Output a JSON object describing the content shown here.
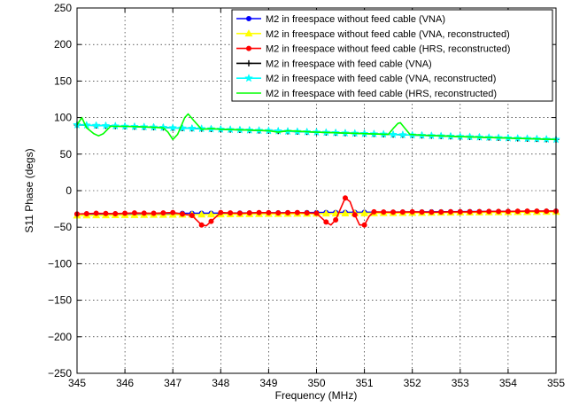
{
  "chart_data": {
    "type": "line",
    "title": "",
    "xlabel": "Frequency (MHz)",
    "ylabel": "S11 Phase (degs)",
    "xlim": [
      345,
      355
    ],
    "ylim": [
      -250,
      250
    ],
    "xticks": [
      345,
      346,
      347,
      348,
      349,
      350,
      351,
      352,
      353,
      354,
      355
    ],
    "yticks": [
      -250,
      -200,
      -150,
      -100,
      -50,
      0,
      50,
      100,
      150,
      200,
      250
    ],
    "grid": true,
    "legend_position": "top-right",
    "series": [
      {
        "name": "M2 in freespace without feed cable (VNA)",
        "color": "#0000ff",
        "marker": "circle",
        "points": [
          [
            345,
            -32
          ],
          [
            346,
            -31.6
          ],
          [
            347,
            -31.2
          ],
          [
            348,
            -30.8
          ],
          [
            349,
            -30.4
          ],
          [
            350,
            -30
          ],
          [
            351,
            -29.6
          ],
          [
            352,
            -29.2
          ],
          [
            353,
            -28.8
          ],
          [
            354,
            -28.4
          ],
          [
            355,
            -28
          ]
        ]
      },
      {
        "name": "M2 in freespace without feed cable (VNA, reconstructed)",
        "color": "#ffff00",
        "marker": "triangle",
        "points": [
          [
            345,
            -34
          ],
          [
            346,
            -33.5
          ],
          [
            347,
            -33
          ],
          [
            348,
            -32.5
          ],
          [
            349,
            -32
          ],
          [
            350,
            -31.5
          ],
          [
            351,
            -31
          ],
          [
            352,
            -30.5
          ],
          [
            353,
            -30
          ],
          [
            354,
            -29.5
          ],
          [
            355,
            -29
          ]
        ]
      },
      {
        "name": "M2 in freespace without feed cable (HRS, reconstructed)",
        "color": "#ff0000",
        "marker": "circle",
        "points": [
          [
            345,
            -32
          ],
          [
            345.4,
            -31
          ],
          [
            345.8,
            -31.5
          ],
          [
            346.2,
            -30.5
          ],
          [
            346.6,
            -31
          ],
          [
            347,
            -30
          ],
          [
            347.2,
            -32
          ],
          [
            347.4,
            -34
          ],
          [
            347.6,
            -47
          ],
          [
            347.7,
            -48
          ],
          [
            347.8,
            -42
          ],
          [
            348,
            -30
          ],
          [
            348.4,
            -31
          ],
          [
            348.8,
            -30
          ],
          [
            349.2,
            -30.5
          ],
          [
            349.6,
            -30
          ],
          [
            350,
            -31
          ],
          [
            350.2,
            -43
          ],
          [
            350.3,
            -47
          ],
          [
            350.4,
            -40
          ],
          [
            350.5,
            -25
          ],
          [
            350.6,
            -10
          ],
          [
            350.7,
            -15
          ],
          [
            350.8,
            -33
          ],
          [
            350.9,
            -47
          ],
          [
            351,
            -47
          ],
          [
            351.1,
            -35
          ],
          [
            351.2,
            -29
          ],
          [
            351.6,
            -29.5
          ],
          [
            352,
            -29
          ],
          [
            352.4,
            -29.5
          ],
          [
            352.8,
            -29
          ],
          [
            353.2,
            -29
          ],
          [
            353.6,
            -28.5
          ],
          [
            354,
            -28.5
          ],
          [
            354.4,
            -28
          ],
          [
            354.8,
            -28
          ],
          [
            355,
            -28
          ]
        ]
      },
      {
        "name": "M2 in freespace with feed cable (VNA)",
        "color": "#000000",
        "marker": "plus",
        "points": [
          [
            345,
            90
          ],
          [
            346,
            88
          ],
          [
            347,
            86
          ],
          [
            348,
            84
          ],
          [
            349,
            82
          ],
          [
            350,
            80
          ],
          [
            351,
            78
          ],
          [
            352,
            76
          ],
          [
            353,
            74
          ],
          [
            354,
            72
          ],
          [
            355,
            70
          ]
        ]
      },
      {
        "name": "M2 in freespace with feed cable (VNA, reconstructed)",
        "color": "#00ffff",
        "marker": "star",
        "points": [
          [
            345,
            90
          ],
          [
            346,
            88
          ],
          [
            347,
            86
          ],
          [
            348,
            84
          ],
          [
            349,
            82
          ],
          [
            350,
            80
          ],
          [
            351,
            78
          ],
          [
            352,
            76
          ],
          [
            353,
            74
          ],
          [
            354,
            72
          ],
          [
            355,
            70
          ]
        ]
      },
      {
        "name": "M2 in freespace with feed cable (HRS, reconstructed)",
        "color": "#00ff00",
        "marker": "none",
        "points": [
          [
            345,
            90
          ],
          [
            345.1,
            100
          ],
          [
            345.2,
            86
          ],
          [
            345.35,
            78
          ],
          [
            345.45,
            75
          ],
          [
            345.55,
            78
          ],
          [
            345.7,
            88
          ],
          [
            346,
            88
          ],
          [
            346.5,
            87
          ],
          [
            346.8,
            86
          ],
          [
            346.9,
            80
          ],
          [
            347,
            70
          ],
          [
            347.1,
            77
          ],
          [
            347.25,
            100
          ],
          [
            347.32,
            105
          ],
          [
            347.45,
            95
          ],
          [
            347.6,
            84
          ],
          [
            347.8,
            85
          ],
          [
            348,
            84
          ],
          [
            348.5,
            83
          ],
          [
            349,
            82
          ],
          [
            349.2,
            80
          ],
          [
            349.4,
            82
          ],
          [
            350,
            80
          ],
          [
            351,
            78
          ],
          [
            351.5,
            77
          ],
          [
            351.6,
            85
          ],
          [
            351.7,
            92
          ],
          [
            351.75,
            93
          ],
          [
            351.85,
            85
          ],
          [
            351.95,
            77
          ],
          [
            352.2,
            76
          ],
          [
            353,
            74
          ],
          [
            354,
            72
          ],
          [
            355,
            70
          ]
        ]
      }
    ]
  }
}
